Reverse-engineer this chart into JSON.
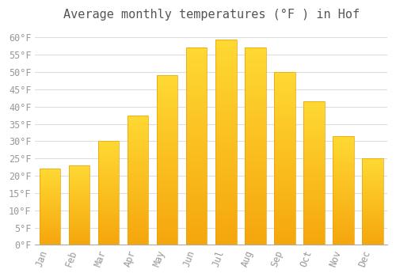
{
  "title": "Average monthly temperatures (°F ) in Hof",
  "months": [
    "Jan",
    "Feb",
    "Mar",
    "Apr",
    "May",
    "Jun",
    "Jul",
    "Aug",
    "Sep",
    "Oct",
    "Nov",
    "Dec"
  ],
  "values": [
    22,
    23,
    30,
    37.5,
    49,
    57,
    59.5,
    57,
    50,
    41.5,
    31.5,
    25
  ],
  "bar_color_bottom": "#F5A623",
  "bar_color_top": "#FFD966",
  "bar_color_mid": "#FFBF00",
  "background_color": "#FFFFFF",
  "grid_color": "#DDDDDD",
  "ylim": [
    0,
    63
  ],
  "yticks": [
    0,
    5,
    10,
    15,
    20,
    25,
    30,
    35,
    40,
    45,
    50,
    55,
    60
  ],
  "title_fontsize": 11,
  "tick_fontsize": 8.5,
  "tick_color": "#999999",
  "title_color": "#555555"
}
